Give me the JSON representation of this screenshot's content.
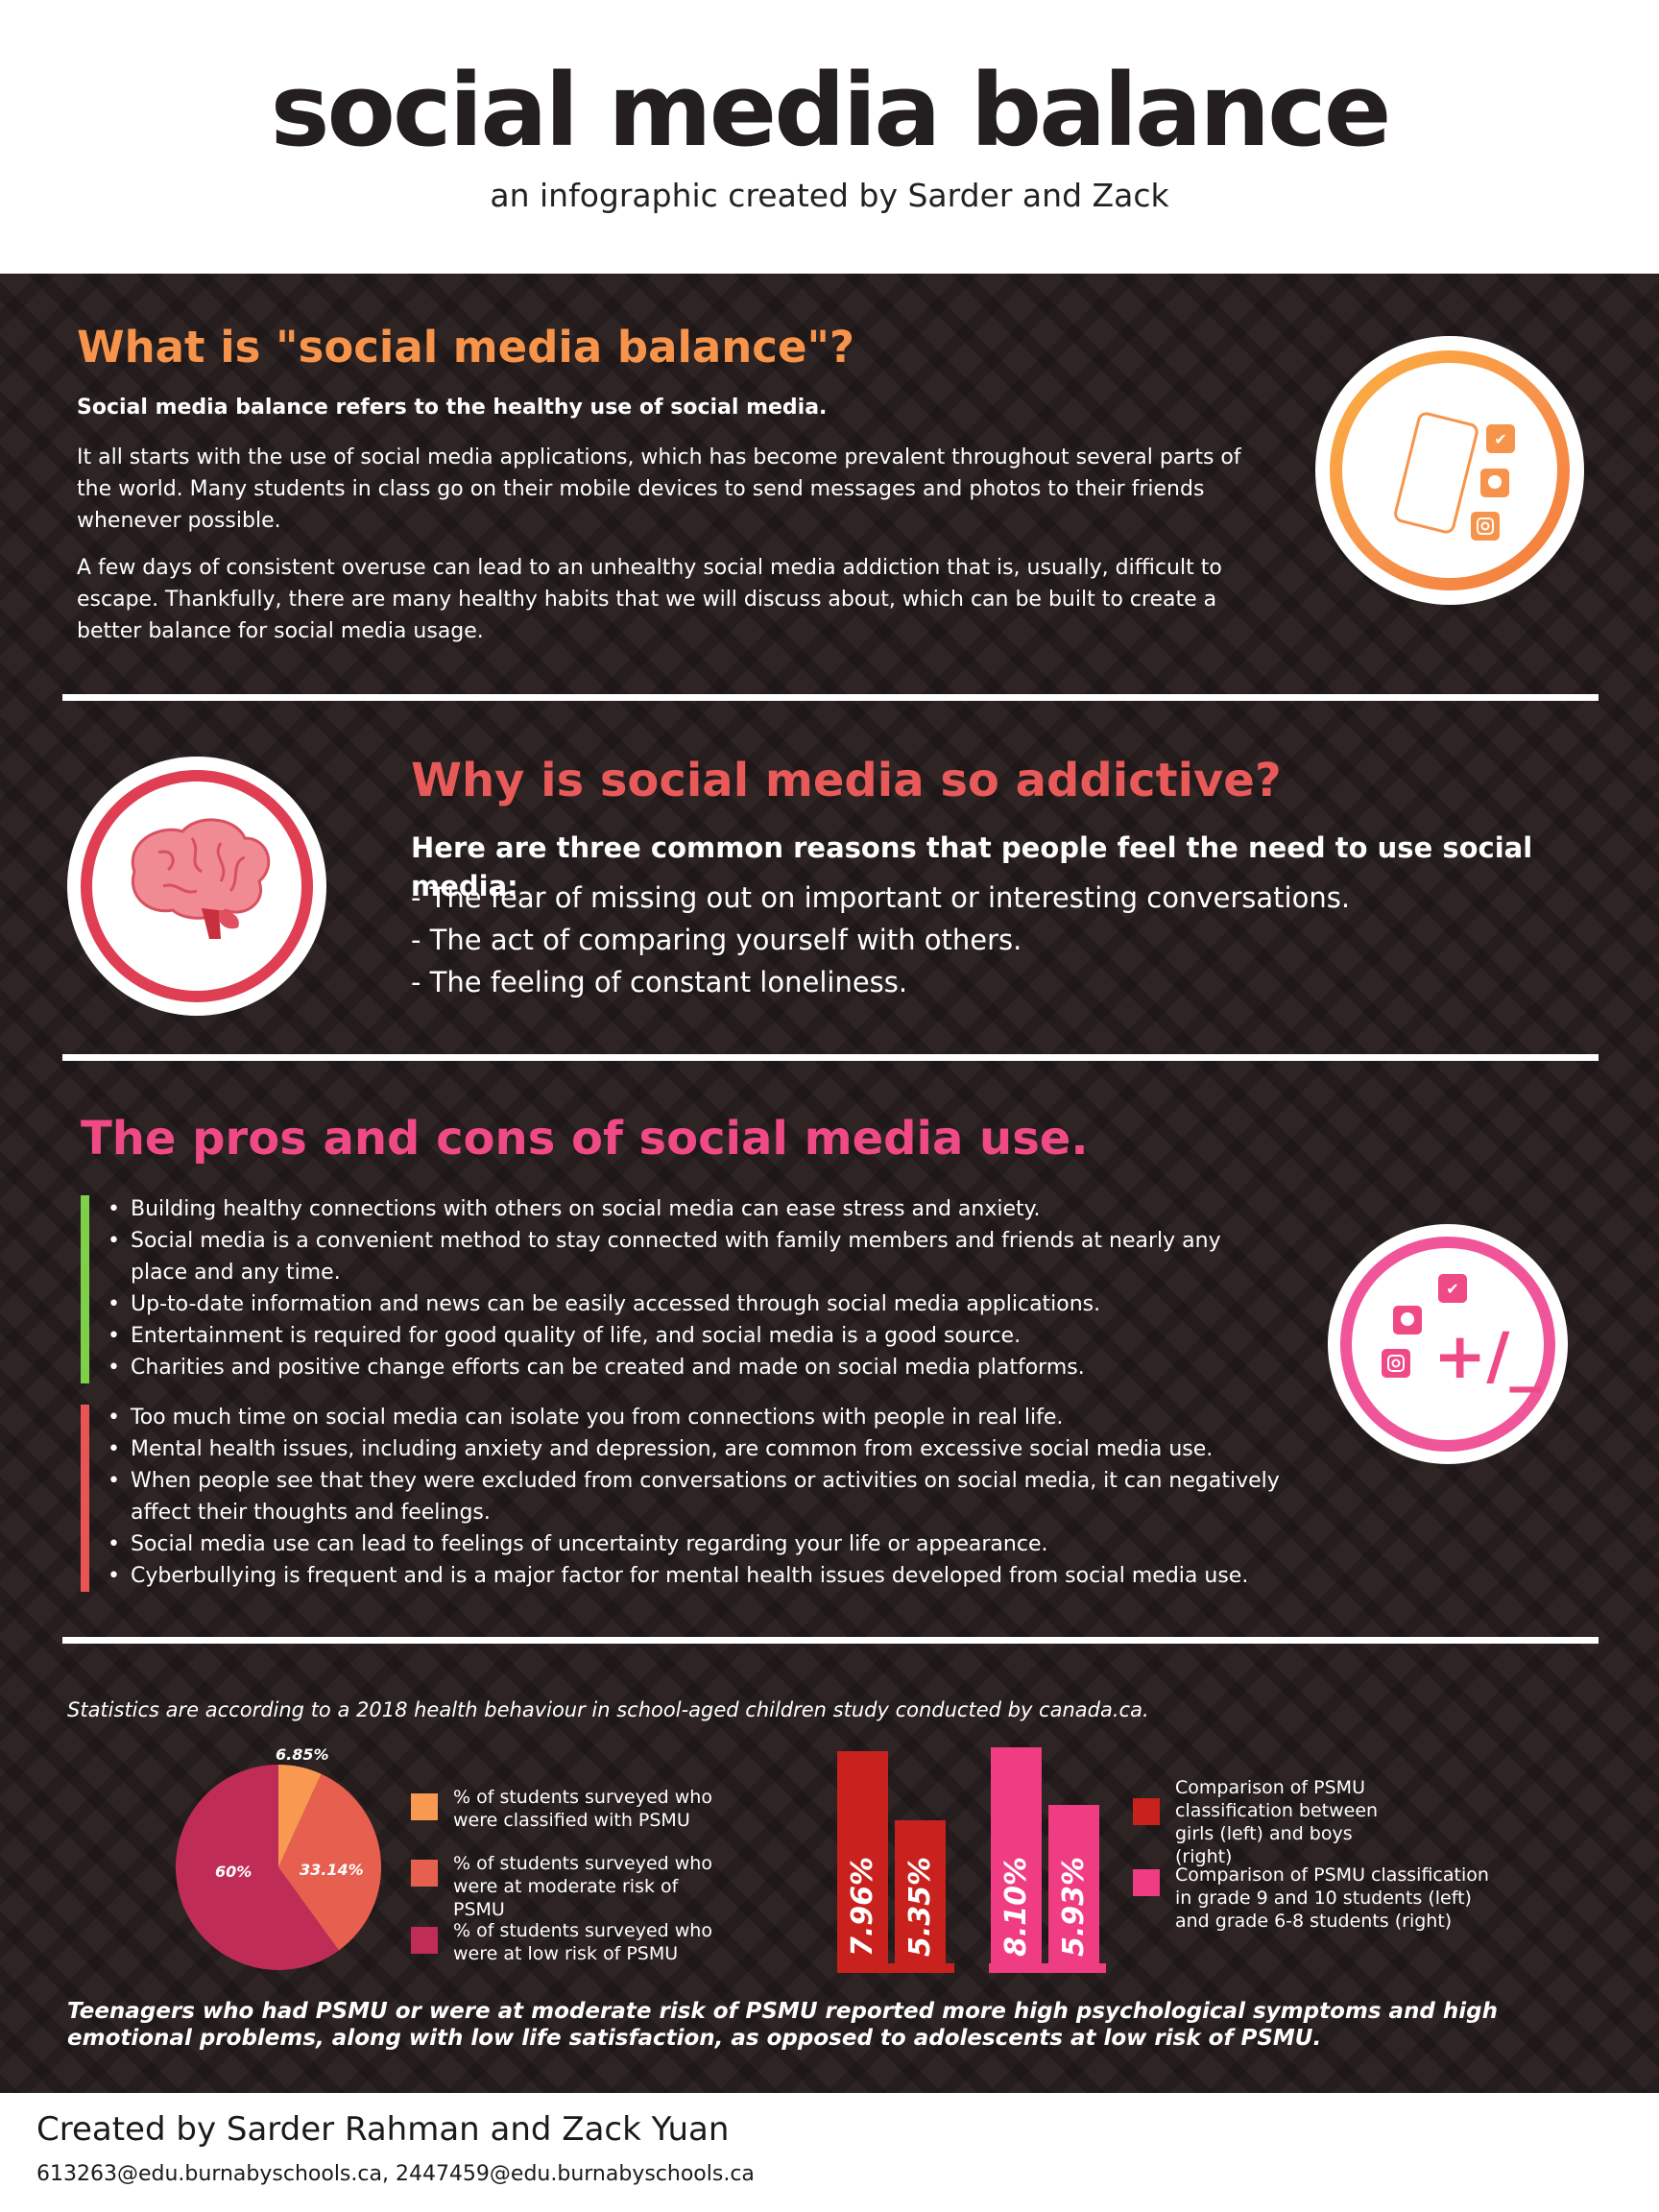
{
  "header": {
    "title": "social media balance",
    "subtitle": "an infographic created by Sarder and Zack"
  },
  "colors": {
    "orange": "#f7944b",
    "red": "#e85a5a",
    "pink": "#f04a86",
    "green": "#7ed04b",
    "dark_bg": "#2e2424",
    "pie_orange": "#f99851",
    "pie_red": "#e7604f",
    "pie_crimson": "#bf2d57",
    "bar_red": "#c9211e",
    "bar_pink": "#f03c82"
  },
  "section1": {
    "heading": "What is \"social media balance\"?",
    "lead": "Social media balance refers to the healthy use of social media.",
    "para1": "It all starts with the use of social media applications, which has become prevalent throughout several parts of the world. Many students in class go on their mobile devices to send messages and photos to their friends whenever possible.",
    "para2": "A few days of consistent overuse can lead to an unhealthy social media addiction that is, usually, difficult to escape. Thankfully, there are many healthy habits that we will discuss about, which can be built to create a better balance for social media usage.",
    "icon": "phone-social-icon"
  },
  "section2": {
    "heading": "Why is social media so addictive?",
    "lead": "Here are three common reasons that people feel the need to use social media:",
    "reasons": [
      "- The fear of missing out on important or interesting conversations.",
      "- The act of comparing yourself with others.",
      "- The feeling of constant loneliness."
    ],
    "icon": "brain-icon"
  },
  "section3": {
    "heading": "The pros and cons of social media use.",
    "pros": [
      "Building healthy connections with others on social media can ease stress and anxiety.",
      "Social media is a convenient method to stay connected with family members and friends at nearly any place and any time.",
      "Up-to-date information and news can be easily accessed through social media applications.",
      "Entertainment is required for good quality of life, and social media is a good source.",
      "Charities and positive change efforts can be created and made on social media platforms."
    ],
    "cons": [
      "Too much time on social media can isolate you from connections with people in real life.",
      "Mental health issues, including anxiety and depression, are common from excessive social media use.",
      "When people see that they were excluded from conversations or activities on social media, it can negatively affect their thoughts and feelings.",
      "Social media use can lead to feelings of uncertainty regarding your life or appearance.",
      "Cyberbullying is frequent and is a major factor for mental health issues developed from social media use."
    ],
    "icon": "plus-minus-icon",
    "icon_text": "+/_"
  },
  "stats": {
    "source": "Statistics are according to a 2018 health behaviour in school-aged children study conducted by canada.ca.",
    "conclusion": "Teenagers who had PSMU or were at moderate risk of PSMU reported more high psychological symptoms and high emotional problems, along with low life satisfaction, as opposed to adolescents at low risk of PSMU."
  },
  "chart_data": [
    {
      "type": "pie",
      "labels": [
        "6.85%",
        "33.14%",
        "60%"
      ],
      "values": [
        6.85,
        33.14,
        60
      ],
      "colors": [
        "#f99851",
        "#e7604f",
        "#bf2d57"
      ],
      "legend": [
        "% of students surveyed who were classified with PSMU",
        "% of students surveyed who were at moderate risk of PSMU",
        "% of students surveyed who were at low risk of PSMU"
      ]
    },
    {
      "type": "bar",
      "groups": [
        {
          "legend": "Comparison of PSMU classification between girls (left) and boys (right)",
          "color": "#c9211e",
          "labels": [
            "7.96%",
            "5.35%"
          ],
          "values": [
            7.96,
            5.35
          ]
        },
        {
          "legend": "Comparison of PSMU classification in grade 9 and 10 students (left) and grade 6-8 students (right)",
          "color": "#f03c82",
          "labels": [
            "8.10%",
            "5.93%"
          ],
          "values": [
            8.1,
            5.93
          ]
        }
      ],
      "ylim": [
        0,
        8.1
      ]
    }
  ],
  "footer": {
    "credit": "Created by Sarder Rahman and Zack Yuan",
    "emails": "613263@edu.burnabyschools.ca, 2447459@edu.burnabyschools.ca"
  }
}
